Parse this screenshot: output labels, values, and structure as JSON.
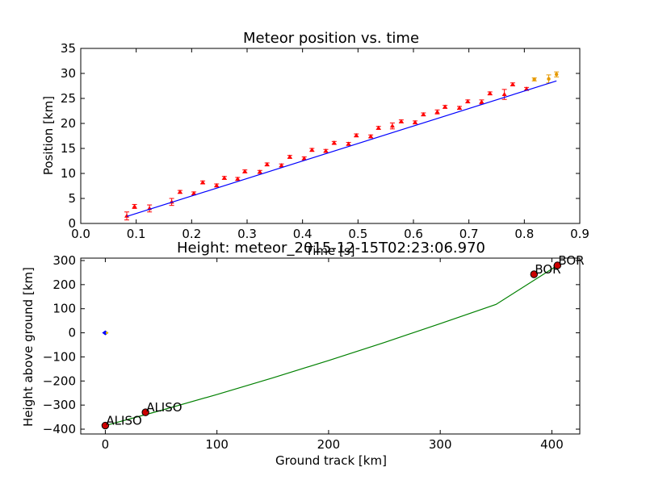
{
  "chart_data": [
    {
      "type": "scatter",
      "title": "Meteor position vs. time",
      "xlabel": "Time [s]",
      "ylabel": "Position [km]",
      "xlim": [
        0.0,
        0.9
      ],
      "ylim": [
        0,
        35
      ],
      "xticks": [
        "0.0",
        "0.1",
        "0.2",
        "0.3",
        "0.4",
        "0.5",
        "0.6",
        "0.7",
        "0.8",
        "0.9"
      ],
      "yticks": [
        "0",
        "5",
        "10",
        "15",
        "20",
        "25",
        "30",
        "35"
      ],
      "grid": false,
      "colors": {
        "points": "#ff0000",
        "outliers": "#e69a00",
        "fit": "#0000ff"
      },
      "series": [
        {
          "marker": "triangle",
          "color": "#ff0000",
          "x": [
            0.083,
            0.097,
            0.124,
            0.164,
            0.179,
            0.204,
            0.22,
            0.245,
            0.259,
            0.283,
            0.296,
            0.323,
            0.336,
            0.362,
            0.377,
            0.403,
            0.417,
            0.442,
            0.457,
            0.483,
            0.497,
            0.523,
            0.537,
            0.562,
            0.578,
            0.603,
            0.618,
            0.643,
            0.657,
            0.683,
            0.698,
            0.723,
            0.738,
            0.764,
            0.779,
            0.804
          ],
          "y": [
            1.5,
            3.4,
            3.0,
            4.3,
            6.3,
            6.0,
            8.2,
            7.6,
            9.1,
            8.9,
            10.4,
            10.3,
            11.8,
            11.6,
            13.3,
            13.0,
            14.7,
            14.5,
            16.1,
            15.9,
            17.6,
            17.4,
            19.1,
            19.5,
            20.4,
            20.2,
            21.8,
            22.3,
            23.3,
            23.1,
            24.4,
            24.3,
            26.0,
            25.8,
            27.8,
            26.9
          ],
          "yerr": [
            0.8,
            0.4,
            0.7,
            0.7,
            0.3,
            0.3,
            0.3,
            0.3,
            0.3,
            0.3,
            0.3,
            0.3,
            0.3,
            0.3,
            0.3,
            0.3,
            0.3,
            0.3,
            0.3,
            0.3,
            0.3,
            0.3,
            0.3,
            0.6,
            0.3,
            0.3,
            0.3,
            0.4,
            0.3,
            0.3,
            0.3,
            0.4,
            0.3,
            1.0,
            0.3,
            0.3
          ]
        },
        {
          "marker": "circle",
          "color": "#e69a00",
          "x": [
            0.818,
            0.844,
            0.858
          ],
          "y": [
            28.8,
            28.9,
            29.8
          ],
          "yerr": [
            0.3,
            0.8,
            0.5
          ]
        },
        {
          "type": "line",
          "color": "#0000ff",
          "x": [
            0.083,
            0.858
          ],
          "y": [
            1.4,
            28.5
          ]
        }
      ]
    },
    {
      "type": "line",
      "title": "Height: meteor_2015-12-15T02:23:06.970",
      "xlabel": "Ground track [km]",
      "ylabel": "Height above ground [km]",
      "xlim": [
        -22,
        425
      ],
      "ylim": [
        -420,
        310
      ],
      "xticks": [
        "0",
        "100",
        "200",
        "300",
        "400"
      ],
      "yticks": [
        "300",
        "200",
        "100",
        "0",
        "−100",
        "−200",
        "−300",
        "−400"
      ],
      "grid": false,
      "colors": {
        "track": "#008000",
        "stations": "#cc0000",
        "origin": "#0000ff"
      },
      "track": {
        "x": [
          0,
          50,
          100,
          150,
          200,
          250,
          300,
          350,
          405
        ],
        "y": [
          -385,
          -322,
          -256,
          -187,
          -115,
          -40,
          38,
          118,
          280
        ]
      },
      "stations": [
        {
          "label": "ALISO",
          "x": 0,
          "y": -385
        },
        {
          "label": "ALISO",
          "x": 36,
          "y": -330
        },
        {
          "label": "BOR",
          "x": 384,
          "y": 243
        },
        {
          "label": "BOR",
          "x": 405,
          "y": 280
        }
      ],
      "origin_marker": {
        "x": 0,
        "y": 0
      }
    }
  ]
}
